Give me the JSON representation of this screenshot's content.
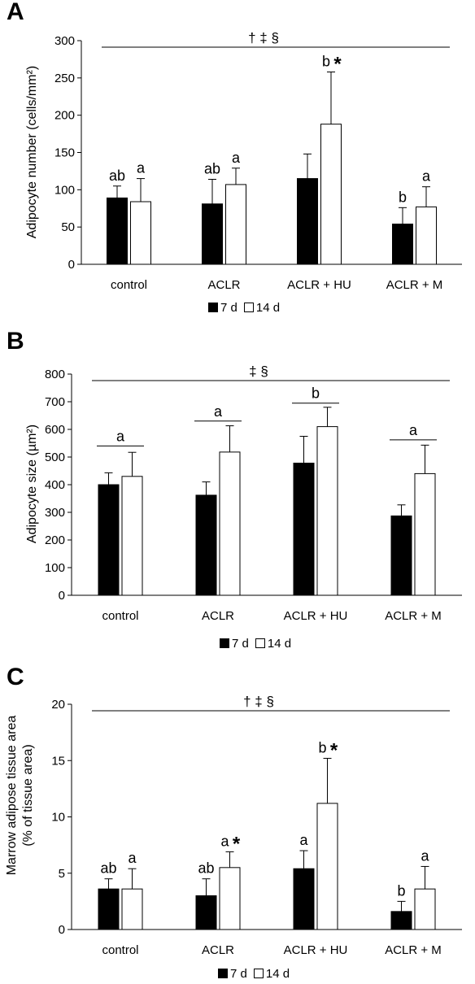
{
  "legend": {
    "series_7d": "7 d",
    "series_14d": "14 d"
  },
  "colors": {
    "7 d": "#000000",
    "14 d": "#ffffff",
    "axis": "#000000"
  },
  "chart_data": [
    {
      "id": "A",
      "type": "bar",
      "panel_label": "A",
      "ylabel": "Adipocyte number (cells/mm²)",
      "ylim": [
        0,
        300
      ],
      "yticks": [
        0,
        50,
        100,
        150,
        200,
        250,
        300
      ],
      "categories": [
        "control",
        "ACLR",
        "ACLR + HU",
        "ACLR + M"
      ],
      "series": [
        {
          "name": "7 d",
          "values": [
            89,
            81,
            115,
            54
          ],
          "errors": [
            16,
            33,
            33,
            22
          ]
        },
        {
          "name": "14 d",
          "values": [
            84,
            107,
            188,
            77
          ],
          "errors": [
            31,
            22,
            70,
            27
          ]
        }
      ],
      "significance_text": "† ‡ §",
      "group_letters": [
        {
          "category": 0,
          "series": 0,
          "text": "ab"
        },
        {
          "category": 0,
          "series": 1,
          "text": "a"
        },
        {
          "category": 1,
          "series": 0,
          "text": "ab"
        },
        {
          "category": 1,
          "series": 1,
          "text": "a"
        },
        {
          "category": 2,
          "series": 1,
          "text": "b"
        },
        {
          "category": 3,
          "series": 0,
          "text": "b"
        },
        {
          "category": 3,
          "series": 1,
          "text": "a"
        }
      ],
      "asterisks": [
        {
          "category": 2,
          "series": 1
        }
      ],
      "pair_letters": [],
      "grid": false
    },
    {
      "id": "B",
      "type": "bar",
      "panel_label": "B",
      "ylabel": "Adipocyte size (µm²)",
      "ylim": [
        0,
        800
      ],
      "yticks": [
        0,
        100,
        200,
        300,
        400,
        500,
        600,
        700,
        800
      ],
      "categories": [
        "control",
        "ACLR",
        "ACLR + HU",
        "ACLR + M"
      ],
      "series": [
        {
          "name": "7 d",
          "values": [
            400,
            362,
            478,
            287
          ],
          "errors": [
            43,
            48,
            97,
            40
          ]
        },
        {
          "name": "14 d",
          "values": [
            430,
            518,
            610,
            440
          ],
          "errors": [
            87,
            95,
            70,
            103
          ]
        }
      ],
      "significance_text": "‡ §",
      "group_letters": [],
      "asterisks": [],
      "pair_letters": [
        {
          "category": 0,
          "text": "a",
          "level": 540
        },
        {
          "category": 1,
          "text": "a",
          "level": 630
        },
        {
          "category": 2,
          "text": "b",
          "level": 695
        },
        {
          "category": 3,
          "text": "a",
          "level": 562
        }
      ],
      "grid": false
    },
    {
      "id": "C",
      "type": "bar",
      "panel_label": "C",
      "ylabel": [
        "Marrow adipose tissue area",
        "(% of tissue area)"
      ],
      "ylim": [
        0,
        20
      ],
      "yticks": [
        0,
        5,
        10,
        15,
        20
      ],
      "categories": [
        "control",
        "ACLR",
        "ACLR + HU",
        "ACLR + M"
      ],
      "series": [
        {
          "name": "7 d",
          "values": [
            3.6,
            3.0,
            5.4,
            1.6
          ],
          "errors": [
            0.9,
            1.5,
            1.6,
            0.9
          ]
        },
        {
          "name": "14 d",
          "values": [
            3.6,
            5.5,
            11.2,
            3.6
          ],
          "errors": [
            1.8,
            1.4,
            4.0,
            2.0
          ]
        }
      ],
      "significance_text": "† ‡ §",
      "group_letters": [
        {
          "category": 0,
          "series": 0,
          "text": "ab"
        },
        {
          "category": 0,
          "series": 1,
          "text": "a"
        },
        {
          "category": 1,
          "series": 0,
          "text": "ab"
        },
        {
          "category": 1,
          "series": 1,
          "text": "a"
        },
        {
          "category": 2,
          "series": 0,
          "text": "a"
        },
        {
          "category": 2,
          "series": 1,
          "text": "b"
        },
        {
          "category": 3,
          "series": 0,
          "text": "b"
        },
        {
          "category": 3,
          "series": 1,
          "text": "a"
        }
      ],
      "asterisks": [
        {
          "category": 1,
          "series": 1
        },
        {
          "category": 2,
          "series": 1
        }
      ],
      "pair_letters": [],
      "grid": false
    }
  ]
}
